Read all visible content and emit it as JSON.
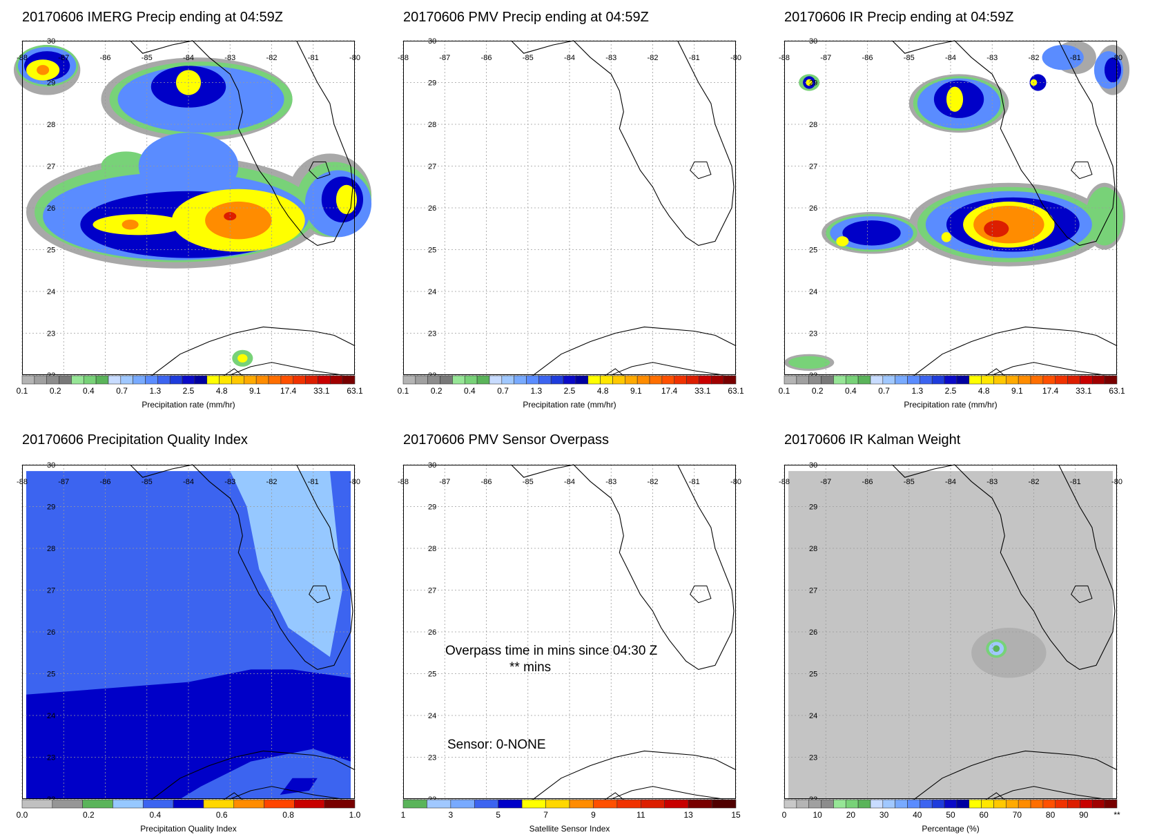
{
  "date": "20170606",
  "panels": [
    {
      "id": "imerg",
      "title": "20170606 IMERG Precip ending at 04:59Z",
      "colorbar": {
        "colors": [
          "#b4b4b4",
          "#a0a0a0",
          "#8c8c8c",
          "#787878",
          "#96e696",
          "#78d278",
          "#5ab45a",
          "#c8dcff",
          "#a0c8ff",
          "#78aaff",
          "#5a8cff",
          "#3c64f0",
          "#1e3cdc",
          "#0a0ac8",
          "#0000a0",
          "#ffff00",
          "#ffe600",
          "#ffc800",
          "#ffaa00",
          "#ff8c00",
          "#ff6e00",
          "#ff5000",
          "#f03200",
          "#dc1e00",
          "#c80000",
          "#a00000",
          "#780000"
        ],
        "labels": [
          "0.1",
          "0.2",
          "0.4",
          "0.7",
          "1.3",
          "2.5",
          "4.8",
          "9.1",
          "17.4",
          "33.1",
          "63.1"
        ],
        "title": "Precipitation rate (mm/hr)"
      }
    },
    {
      "id": "pmv",
      "title": "20170606 PMV Precip ending at 04:59Z",
      "colorbar": {
        "labels": [
          "0.1",
          "0.2",
          "0.4",
          "0.7",
          "1.3",
          "2.5",
          "4.8",
          "9.1",
          "17.4",
          "33.1",
          "63.1"
        ],
        "title": "Precipitation rate (mm/hr)"
      }
    },
    {
      "id": "ir",
      "title": "20170606 IR Precip ending at 04:59Z",
      "colorbar": {
        "labels": [
          "0.1",
          "0.2",
          "0.4",
          "0.7",
          "1.3",
          "2.5",
          "4.8",
          "9.1",
          "17.4",
          "33.1",
          "63.1"
        ],
        "title": "Precipitation rate (mm/hr)"
      }
    },
    {
      "id": "pqi",
      "title": "20170606 Precipitation Quality Index",
      "colorbar": {
        "colors": [
          "#c0c0c0",
          "#969696",
          "#5ab45a",
          "#96c8ff",
          "#3c64f0",
          "#0000c8",
          "#ffd700",
          "#ff8c00",
          "#ff4500",
          "#c80000",
          "#780000"
        ],
        "labels": [
          "0.0",
          "0.2",
          "0.4",
          "0.6",
          "0.8",
          "1.0"
        ],
        "title": "Precipitation Quality Index"
      }
    },
    {
      "id": "sensor",
      "title": "20170606 PMV Sensor Overpass",
      "colorbar": {
        "colors": [
          "#5ab45a",
          "#a0c8ff",
          "#78aaff",
          "#3c64f0",
          "#0000c8",
          "#ffff00",
          "#ffd700",
          "#ff8c00",
          "#ff5000",
          "#f03200",
          "#dc1e00",
          "#c80000",
          "#780000",
          "#500000"
        ],
        "labels": [
          "1",
          "3",
          "5",
          "7",
          "9",
          "11",
          "13",
          "15"
        ],
        "title": "Satellite Sensor Index"
      },
      "notes": {
        "overpass": "Overpass time in mins since 04:30 Z",
        "mins": "** mins",
        "sensor": "Sensor:   0-NONE"
      }
    },
    {
      "id": "kalman",
      "title": "20170606 IR Kalman Weight",
      "colorbar": {
        "colors": [
          "#c8c8c8",
          "#b4b4b4",
          "#a0a0a0",
          "#8c8c8c",
          "#96e696",
          "#78d278",
          "#5ab45a",
          "#c8dcff",
          "#a0c8ff",
          "#78aaff",
          "#5a8cff",
          "#3c64f0",
          "#1e3cdc",
          "#0a0ac8",
          "#0000a0",
          "#ffff00",
          "#ffe600",
          "#ffc800",
          "#ffaa00",
          "#ff8c00",
          "#ff6e00",
          "#ff5000",
          "#f03200",
          "#dc1e00",
          "#c80000",
          "#a00000",
          "#780000"
        ],
        "labels": [
          "0",
          "10",
          "20",
          "30",
          "40",
          "50",
          "60",
          "70",
          "80",
          "90",
          "**"
        ],
        "title": "Percentage (%)"
      }
    }
  ],
  "axes": {
    "lon_labels": [
      "-88",
      "-87",
      "-86",
      "-85",
      "-84",
      "-83",
      "-82",
      "-81",
      "-80"
    ],
    "lat_labels": [
      "30",
      "29",
      "28",
      "27",
      "26",
      "25",
      "24",
      "23",
      "22"
    ],
    "lon_range": [
      -88,
      -80
    ],
    "lat_range": [
      22,
      30
    ]
  }
}
